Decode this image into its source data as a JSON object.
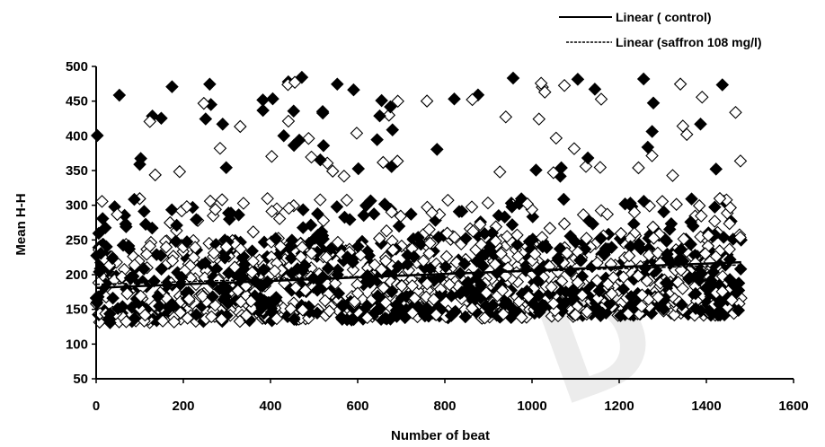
{
  "chart_data": {
    "type": "scatter",
    "xlabel": "Number of beat",
    "ylabel": "Mean H-H",
    "xlim": [
      0,
      1600
    ],
    "ylim": [
      50,
      500
    ],
    "xticks": [
      0,
      200,
      400,
      600,
      800,
      1000,
      1200,
      1400,
      1600
    ],
    "yticks": [
      50,
      100,
      150,
      200,
      250,
      300,
      350,
      400,
      450,
      500
    ],
    "legend": {
      "placement": "top-right",
      "entries": [
        "Linear ( control)",
        "Linear (saffron 108 mg/l)"
      ]
    },
    "watermark": "D",
    "series": [
      {
        "marker": "filled-diamond",
        "x_range": [
          0,
          1480
        ],
        "approx_points": 750,
        "y_band": [
          125,
          485
        ],
        "y_core": [
          130,
          250
        ]
      },
      {
        "marker": "open-diamond",
        "x_range": [
          0,
          1480
        ],
        "approx_points": 750,
        "y_band": [
          120,
          482
        ],
        "y_core": [
          130,
          250
        ]
      }
    ],
    "trendlines": [
      {
        "name": "Linear ( control)",
        "x": [
          0,
          1480
        ],
        "y": [
          181,
          218
        ],
        "style": "solid"
      },
      {
        "name": "Linear (saffron 108 mg/l)",
        "x": [
          0,
          1480
        ],
        "y": [
          186,
          214
        ],
        "style": "dashed"
      }
    ]
  }
}
